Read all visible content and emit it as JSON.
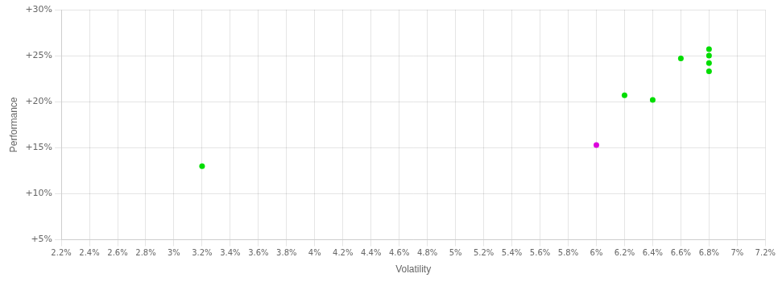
{
  "chart_data": {
    "type": "scatter",
    "xlabel": "Volatility",
    "ylabel": "Performance",
    "xlim": [
      0.022,
      0.072
    ],
    "ylim": [
      0.05,
      0.3
    ],
    "xticks": [
      {
        "value": 0.022,
        "label": "2.2%"
      },
      {
        "value": 0.024,
        "label": "2.4%"
      },
      {
        "value": 0.026,
        "label": "2.6%"
      },
      {
        "value": 0.028,
        "label": "2.8%"
      },
      {
        "value": 0.03,
        "label": "3%"
      },
      {
        "value": 0.032,
        "label": "3.2%"
      },
      {
        "value": 0.034,
        "label": "3.4%"
      },
      {
        "value": 0.036,
        "label": "3.6%"
      },
      {
        "value": 0.038,
        "label": "3.8%"
      },
      {
        "value": 0.04,
        "label": "4%"
      },
      {
        "value": 0.042,
        "label": "4.2%"
      },
      {
        "value": 0.044,
        "label": "4.4%"
      },
      {
        "value": 0.046,
        "label": "4.6%"
      },
      {
        "value": 0.048,
        "label": "4.8%"
      },
      {
        "value": 0.05,
        "label": "5%"
      },
      {
        "value": 0.052,
        "label": "5.2%"
      },
      {
        "value": 0.054,
        "label": "5.4%"
      },
      {
        "value": 0.056,
        "label": "5.6%"
      },
      {
        "value": 0.058,
        "label": "5.8%"
      },
      {
        "value": 0.06,
        "label": "6%"
      },
      {
        "value": 0.062,
        "label": "6.2%"
      },
      {
        "value": 0.064,
        "label": "6.4%"
      },
      {
        "value": 0.066,
        "label": "6.6%"
      },
      {
        "value": 0.068,
        "label": "6.8%"
      },
      {
        "value": 0.07,
        "label": "7%"
      },
      {
        "value": 0.072,
        "label": "7.2%"
      }
    ],
    "yticks": [
      {
        "value": 0.05,
        "label": "+5%"
      },
      {
        "value": 0.1,
        "label": "+10%"
      },
      {
        "value": 0.15,
        "label": "+15%"
      },
      {
        "value": 0.2,
        "label": "+20%"
      },
      {
        "value": 0.25,
        "label": "+25%"
      },
      {
        "value": 0.3,
        "label": "+30%"
      }
    ],
    "grid": true,
    "series": [
      {
        "color": "#00dd00",
        "x": [
          0.032,
          0.062,
          0.064,
          0.066,
          0.068,
          0.068,
          0.068,
          0.068
        ],
        "values": [
          0.13,
          0.207,
          0.202,
          0.247,
          0.242,
          0.233,
          0.257,
          0.25
        ]
      },
      {
        "color": "#dd00dd",
        "x": [
          0.06
        ],
        "values": [
          0.153
        ]
      }
    ]
  }
}
